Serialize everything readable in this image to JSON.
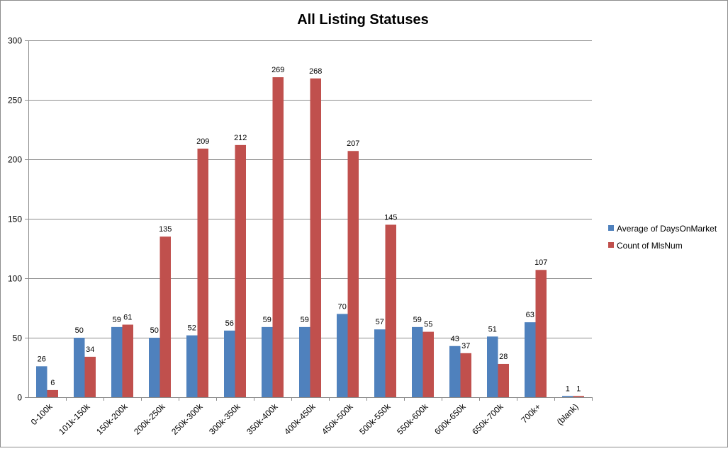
{
  "chart_data": {
    "type": "bar",
    "title": "All Listing Statuses",
    "xlabel": "",
    "ylabel": "",
    "ylim": [
      0,
      300
    ],
    "yticks": [
      0,
      50,
      100,
      150,
      200,
      250,
      300
    ],
    "grid": true,
    "legend_position": "right",
    "categories": [
      "0-100k",
      "101k-150k",
      "150k-200k",
      "200k-250k",
      "250k-300k",
      "300k-350k",
      "350k-400k",
      "400k-450k",
      "450k-500k",
      "500k-550k",
      "550k-600k",
      "600k-650k",
      "650k-700k",
      "700k+",
      "(blank)"
    ],
    "series": [
      {
        "name": "Average of DaysOnMarket",
        "color": "#4F81BD",
        "values": [
          26,
          50,
          59,
          50,
          52,
          56,
          59,
          59,
          70,
          57,
          59,
          43,
          51,
          63,
          1
        ]
      },
      {
        "name": "Count of MlsNum",
        "color": "#C0504D",
        "values": [
          6,
          34,
          61,
          135,
          209,
          212,
          269,
          268,
          207,
          145,
          55,
          37,
          28,
          107,
          1
        ]
      }
    ]
  }
}
